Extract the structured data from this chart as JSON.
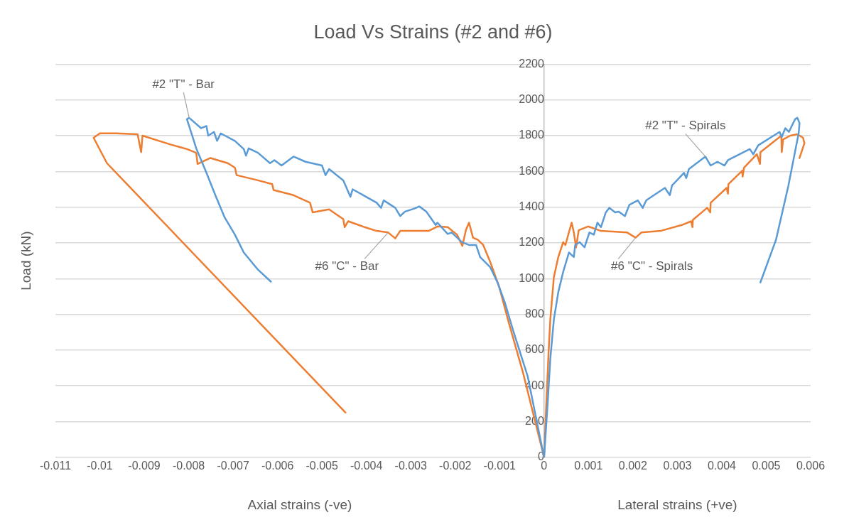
{
  "chart_data": {
    "type": "line",
    "title": "Load Vs Strains (#2 and #6)",
    "xlabel": "Axial strains (-ve)",
    "ylabel": "Load (kN)",
    "annotations": [
      "Lateral strains (+ve)"
    ],
    "xlim": [
      -0.011,
      0.006
    ],
    "xticks": [
      -0.011,
      -0.01,
      -0.009,
      -0.008,
      -0.007,
      -0.006,
      -0.005,
      -0.004,
      -0.003,
      -0.002,
      -0.001,
      0,
      0.001,
      0.002,
      0.003,
      0.004,
      0.005,
      0.006
    ],
    "ylim": [
      0,
      2200
    ],
    "yticks": [
      0,
      200,
      400,
      600,
      800,
      1000,
      1200,
      1400,
      1600,
      1800,
      2000,
      2200
    ],
    "grid": "y",
    "marker": "none",
    "line_style": "solid",
    "series": [
      {
        "name": "#2 \"T\" - Bar",
        "color": "#5b9bd5",
        "x": [
          0,
          -5e-05,
          -0.00037,
          -0.00069,
          -0.00089,
          -0.00105,
          -0.00121,
          -0.00144,
          -0.00153,
          -0.00169,
          -0.00185,
          -0.00208,
          -0.00217,
          -0.0024,
          -0.00244,
          -0.00265,
          -0.00281,
          -0.00292,
          -0.00313,
          -0.00324,
          -0.00335,
          -0.00361,
          -0.00367,
          -0.00377,
          -0.00431,
          -0.00436,
          -0.00452,
          -0.00484,
          -0.00492,
          -0.005,
          -0.00537,
          -0.00564,
          -0.00591,
          -0.00607,
          -0.00617,
          -0.00644,
          -0.00665,
          -0.00671,
          -0.00676,
          -0.00696,
          -0.00728,
          -0.00736,
          -0.00743,
          -0.00756,
          -0.0076,
          -0.00772,
          -0.00799,
          -0.00804,
          -0.00799,
          -0.00783,
          -0.0076,
          -0.0074,
          -0.00719,
          -0.00696,
          -0.00676,
          -0.00644,
          -0.00615
        ],
        "values": [
          0,
          60,
          454,
          704,
          871,
          979,
          1063,
          1121,
          1188,
          1188,
          1204,
          1258,
          1250,
          1313,
          1300,
          1375,
          1404,
          1392,
          1375,
          1350,
          1396,
          1438,
          1396,
          1425,
          1500,
          1458,
          1550,
          1613,
          1579,
          1633,
          1654,
          1683,
          1633,
          1663,
          1646,
          1704,
          1729,
          1688,
          1725,
          1771,
          1813,
          1771,
          1821,
          1800,
          1854,
          1842,
          1900,
          1892,
          1854,
          1729,
          1592,
          1467,
          1342,
          1246,
          1146,
          1050,
          983
        ]
      },
      {
        "name": "#6 \"C\" - Bar",
        "color": "#ed7d31",
        "x": [
          0,
          -0.00048,
          -0.0008,
          -0.00101,
          -0.00121,
          -0.00137,
          -0.00149,
          -0.0016,
          -0.00169,
          -0.00176,
          -0.00184,
          -0.00196,
          -0.00217,
          -0.0024,
          -0.0026,
          -0.00324,
          -0.00335,
          -0.00351,
          -0.00377,
          -0.00404,
          -0.00441,
          -0.00449,
          -0.00452,
          -0.00484,
          -0.00521,
          -0.00527,
          -0.00564,
          -0.00609,
          -0.00612,
          -0.00644,
          -0.00692,
          -0.00696,
          -0.00712,
          -0.00751,
          -0.0078,
          -0.00783,
          -0.00804,
          -0.0084,
          -0.00904,
          -0.00907,
          -0.00915,
          -0.00963,
          -0.01,
          -0.01014,
          -0.00984,
          -0.00447
        ],
        "values": [
          0,
          479,
          758,
          954,
          1092,
          1188,
          1217,
          1229,
          1313,
          1271,
          1183,
          1246,
          1288,
          1292,
          1267,
          1267,
          1225,
          1258,
          1267,
          1288,
          1321,
          1288,
          1333,
          1388,
          1371,
          1425,
          1467,
          1496,
          1529,
          1550,
          1579,
          1621,
          1646,
          1675,
          1642,
          1704,
          1725,
          1750,
          1800,
          1708,
          1808,
          1813,
          1813,
          1788,
          1646,
          250
        ]
      },
      {
        "name": "#2 \"T\" - Spirals",
        "color": "#5b9bd5",
        "x": [
          0,
          8e-05,
          0.00014,
          0.00022,
          0.00032,
          0.00043,
          0.00056,
          0.00067,
          0.0007,
          0.0008,
          0.00091,
          0.00102,
          0.00112,
          0.0012,
          0.00128,
          0.00139,
          0.00147,
          0.0016,
          0.00168,
          0.00182,
          0.00192,
          0.00211,
          0.00222,
          0.0023,
          0.00272,
          0.00283,
          0.00288,
          0.00315,
          0.0032,
          0.00326,
          0.00363,
          0.00375,
          0.0039,
          0.00406,
          0.00414,
          0.00463,
          0.00471,
          0.00482,
          0.0053,
          0.00535,
          0.00543,
          0.00551,
          0.00565,
          0.0057,
          0.00575,
          0.00573,
          0.0055,
          0.00522,
          0.00487
        ],
        "values": [
          0,
          300,
          550,
          771,
          925,
          1038,
          1146,
          1121,
          1188,
          1204,
          1175,
          1258,
          1246,
          1313,
          1288,
          1371,
          1396,
          1371,
          1375,
          1350,
          1413,
          1438,
          1396,
          1438,
          1508,
          1467,
          1521,
          1592,
          1563,
          1613,
          1683,
          1633,
          1654,
          1633,
          1663,
          1725,
          1696,
          1746,
          1821,
          1792,
          1842,
          1821,
          1892,
          1900,
          1871,
          1813,
          1521,
          1217,
          979
        ]
      },
      {
        "name": "#6 \"C\" - Spirals",
        "color": "#ed7d31",
        "x": [
          0,
          5e-05,
          0.00011,
          0.00014,
          0.00022,
          0.00032,
          0.00043,
          0.00048,
          0.00062,
          0.00067,
          0.00072,
          0.00078,
          0.00099,
          0.00128,
          0.00187,
          0.00206,
          0.00219,
          0.00262,
          0.0031,
          0.00331,
          0.00334,
          0.00335,
          0.00367,
          0.00374,
          0.00375,
          0.00411,
          0.00414,
          0.00415,
          0.00446,
          0.00447,
          0.0045,
          0.00479,
          0.00486,
          0.00487,
          0.00534,
          0.00535,
          0.00538,
          0.00554,
          0.0057,
          0.00583,
          0.00586,
          0.00575
        ],
        "values": [
          0,
          300,
          633,
          771,
          1008,
          1121,
          1204,
          1188,
          1313,
          1258,
          1175,
          1271,
          1292,
          1267,
          1258,
          1229,
          1258,
          1267,
          1300,
          1321,
          1288,
          1329,
          1396,
          1371,
          1425,
          1508,
          1475,
          1529,
          1604,
          1571,
          1621,
          1696,
          1642,
          1708,
          1800,
          1708,
          1779,
          1800,
          1808,
          1788,
          1758,
          1675
        ]
      }
    ]
  }
}
